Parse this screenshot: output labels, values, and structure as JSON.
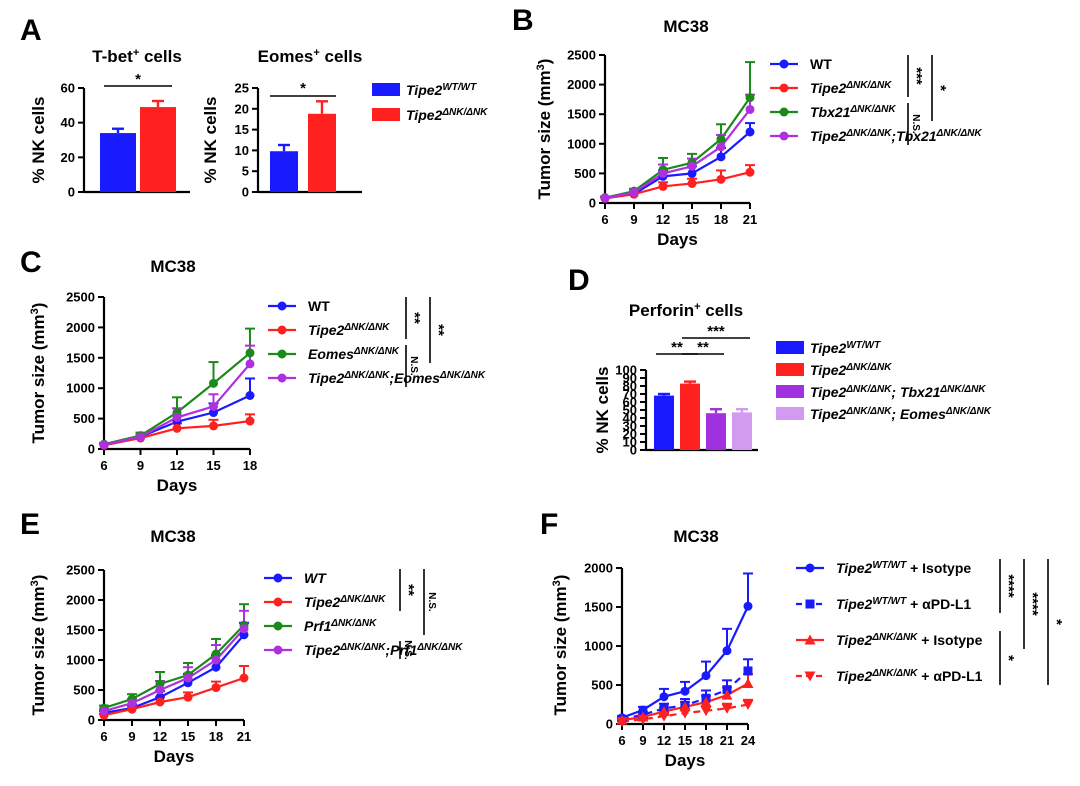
{
  "figure": {
    "panels": {
      "A": "A",
      "B": "B",
      "C": "C",
      "D": "D",
      "E": "E",
      "F": "F"
    }
  },
  "colors": {
    "wt": "#1a1aff",
    "ko": "#ff2020",
    "tbx": "#1a8a1a",
    "combo": "#b030e0",
    "light": "#d39bf0"
  },
  "chart_data": [
    {
      "id": "A1",
      "type": "bar",
      "title": "T-bet+ cells",
      "title_main": "T-bet",
      "title_sup": "+",
      "title_rest": " cells",
      "ylabel": "% NK cells",
      "ylim": [
        0,
        60
      ],
      "yticks": [
        0,
        20,
        40,
        60
      ],
      "categories": [
        "Tipe2 WT/WT",
        "Tipe2 ΔNK/ΔNK"
      ],
      "values": [
        34,
        49
      ],
      "errors": [
        2.5,
        3.5
      ],
      "colors": [
        "#1a1aff",
        "#ff2020"
      ],
      "significance": [
        {
          "from": 0,
          "to": 1,
          "label": "*"
        }
      ]
    },
    {
      "id": "A2",
      "type": "bar",
      "title": "Eomes+ cells",
      "title_main": "Eomes",
      "title_sup": "+",
      "title_rest": " cells",
      "ylabel": "% NK cells",
      "ylim": [
        0,
        25
      ],
      "yticks": [
        0,
        5,
        10,
        15,
        20,
        25
      ],
      "categories": [
        "Tipe2 WT/WT",
        "Tipe2 ΔNK/ΔNK"
      ],
      "values": [
        9.8,
        18.8
      ],
      "errors": [
        1.5,
        3
      ],
      "colors": [
        "#1a1aff",
        "#ff2020"
      ],
      "significance": [
        {
          "from": 0,
          "to": 1,
          "label": "*"
        }
      ],
      "legend": [
        {
          "base": "Tipe2",
          "sup": "WT/WT",
          "color": "#1a1aff"
        },
        {
          "base": "Tipe2",
          "sup": "ΔNK/ΔNK",
          "color": "#ff2020"
        }
      ]
    },
    {
      "id": "B",
      "type": "line",
      "title": "MC38",
      "xlabel": "Days",
      "ylabel": "Tumor size (mm3)",
      "ylabel_main": "Tumor size (mm",
      "ylabel_sup": "3",
      "ylabel_end": ")",
      "x": [
        6,
        9,
        12,
        15,
        18,
        21
      ],
      "xlim": [
        6,
        21
      ],
      "ylim": [
        0,
        2500
      ],
      "yticks": [
        0,
        500,
        1000,
        1500,
        2000,
        2500
      ],
      "series": [
        {
          "name": "WT",
          "color": "#1a1aff",
          "marker": "circle",
          "values": [
            80,
            150,
            450,
            500,
            780,
            1200
          ],
          "errors": [
            20,
            30,
            100,
            120,
            150,
            150
          ]
        },
        {
          "name": "Tipe2 ΔNK/ΔNK",
          "color": "#ff2020",
          "marker": "circle",
          "values": [
            80,
            150,
            280,
            330,
            400,
            520
          ],
          "errors": [
            20,
            30,
            70,
            80,
            150,
            120
          ]
        },
        {
          "name": "Tbx21 ΔNK/ΔNK",
          "color": "#1a8a1a",
          "marker": "circle",
          "values": [
            90,
            200,
            560,
            680,
            1080,
            1780
          ],
          "errors": [
            20,
            40,
            200,
            150,
            250,
            600
          ]
        },
        {
          "name": "Tipe2 ΔNK/ΔNK;Tbx21 ΔNK/ΔNK",
          "color": "#b030e0",
          "marker": "circle",
          "values": [
            80,
            180,
            500,
            620,
            950,
            1580
          ],
          "errors": [
            20,
            40,
            150,
            130,
            200,
            250
          ]
        }
      ],
      "legend": [
        {
          "parts": [
            {
              "t": "WT",
              "sup": false
            }
          ],
          "italic": false
        },
        {
          "parts": [
            {
              "t": "Tipe2",
              "sup": false
            },
            {
              "t": "ΔNK/ΔNK",
              "sup": true
            }
          ],
          "italic": true
        },
        {
          "parts": [
            {
              "t": "Tbx21",
              "sup": false
            },
            {
              "t": "ΔNK/ΔNK",
              "sup": true
            }
          ],
          "italic": true
        },
        {
          "parts": [
            {
              "t": "Tipe2",
              "sup": false
            },
            {
              "t": "ΔNK/ΔNK",
              "sup": true
            },
            {
              "t": ";Tbx21",
              "sup": false
            },
            {
              "t": "ΔNK/ΔNK",
              "sup": true
            }
          ],
          "italic": true
        }
      ],
      "significance": [
        {
          "rows": [
            0,
            1
          ],
          "label": "***",
          "level": 0
        },
        {
          "rows": [
            0,
            2
          ],
          "label": "*",
          "level": 1
        },
        {
          "rows": [
            2,
            3
          ],
          "label": "N.S.",
          "level": 0
        }
      ]
    },
    {
      "id": "C",
      "type": "line",
      "title": "MC38",
      "xlabel": "Days",
      "ylabel": "Tumor size (mm3)",
      "ylabel_main": "Tumor size (mm",
      "ylabel_sup": "3",
      "ylabel_end": ")",
      "x": [
        6,
        9,
        12,
        15,
        18
      ],
      "xlim": [
        6,
        18
      ],
      "ylim": [
        0,
        2500
      ],
      "yticks": [
        0,
        500,
        1000,
        1500,
        2000,
        2500
      ],
      "series": [
        {
          "name": "WT",
          "color": "#1a1aff",
          "marker": "circle",
          "values": [
            60,
            200,
            450,
            600,
            880
          ],
          "errors": [
            20,
            40,
            100,
            150,
            280
          ]
        },
        {
          "name": "Tipe2 ΔNK/ΔNK",
          "color": "#ff2020",
          "marker": "circle",
          "values": [
            60,
            180,
            340,
            380,
            460
          ],
          "errors": [
            20,
            40,
            80,
            100,
            110
          ]
        },
        {
          "name": "Eomes ΔNK/ΔNK",
          "color": "#1a8a1a",
          "marker": "circle",
          "values": [
            80,
            220,
            600,
            1080,
            1580
          ],
          "errors": [
            20,
            50,
            250,
            350,
            400
          ]
        },
        {
          "name": "Tipe2 ΔNK/ΔNK;Eomes ΔNK/ΔNK",
          "color": "#b030e0",
          "marker": "circle",
          "values": [
            70,
            200,
            520,
            700,
            1400
          ],
          "errors": [
            20,
            50,
            150,
            200,
            300
          ]
        }
      ],
      "legend": [
        {
          "parts": [
            {
              "t": "WT",
              "sup": false
            }
          ],
          "italic": false
        },
        {
          "parts": [
            {
              "t": "Tipe2",
              "sup": false
            },
            {
              "t": "ΔNK/ΔNK",
              "sup": true
            }
          ],
          "italic": true
        },
        {
          "parts": [
            {
              "t": "Eomes",
              "sup": false
            },
            {
              "t": "ΔNK/ΔNK",
              "sup": true
            }
          ],
          "italic": true
        },
        {
          "parts": [
            {
              "t": "Tipe2",
              "sup": false
            },
            {
              "t": "ΔNK/ΔNK",
              "sup": true
            },
            {
              "t": ";Eomes",
              "sup": false
            },
            {
              "t": "ΔNK/ΔNK",
              "sup": true
            }
          ],
          "italic": true
        }
      ],
      "significance": [
        {
          "rows": [
            0,
            1
          ],
          "label": "**",
          "level": 0
        },
        {
          "rows": [
            0,
            2
          ],
          "label": "**",
          "level": 1
        },
        {
          "rows": [
            2,
            3
          ],
          "label": "N.S.",
          "level": 0
        }
      ]
    },
    {
      "id": "D",
      "type": "bar",
      "title": "Perforin+ cells",
      "title_main": "Perforin",
      "title_sup": "+",
      "title_rest": " cells",
      "ylabel": "% NK cells",
      "ylim": [
        0,
        100
      ],
      "yticks": [
        0,
        10,
        20,
        30,
        40,
        50,
        60,
        70,
        80,
        90,
        100
      ],
      "categories": [
        "Tipe2 WT/WT",
        "Tipe2 ΔNK/ΔNK",
        "Tipe2 ΔNK/ΔNK; Tbx21 ΔNK/ΔNK",
        "Tipe2 ΔNK/ΔNK; Eomes ΔNK/ΔNK"
      ],
      "values": [
        68,
        83,
        46,
        47
      ],
      "errors": [
        2,
        2.5,
        5,
        4
      ],
      "colors": [
        "#1a1aff",
        "#ff2020",
        "#a030e0",
        "#d39bf0"
      ],
      "significance": [
        {
          "from": 0,
          "to": 1,
          "label": "**",
          "level": 0
        },
        {
          "from": 1,
          "to": 2,
          "label": "**",
          "level": 0
        },
        {
          "from": 1,
          "to": 3,
          "label": "***",
          "level": 1
        }
      ],
      "legend": [
        {
          "parts": [
            {
              "t": "Tipe2",
              "sup": false
            },
            {
              "t": "WT/WT",
              "sup": true
            }
          ],
          "color": "#1a1aff"
        },
        {
          "parts": [
            {
              "t": "Tipe2",
              "sup": false
            },
            {
              "t": "ΔNK/ΔNK",
              "sup": true
            }
          ],
          "color": "#ff2020"
        },
        {
          "parts": [
            {
              "t": "Tipe2",
              "sup": false
            },
            {
              "t": "ΔNK/ΔNK",
              "sup": true
            },
            {
              "t": "; Tbx21",
              "sup": false
            },
            {
              "t": "ΔNK/ΔNK",
              "sup": true
            }
          ],
          "color": "#a030e0"
        },
        {
          "parts": [
            {
              "t": "Tipe2",
              "sup": false
            },
            {
              "t": "ΔNK/ΔNK",
              "sup": true
            },
            {
              "t": "; Eomes",
              "sup": false
            },
            {
              "t": "ΔNK/ΔNK",
              "sup": true
            }
          ],
          "color": "#d39bf0"
        }
      ]
    },
    {
      "id": "E",
      "type": "line",
      "title": "MC38",
      "xlabel": "Days",
      "ylabel": "Tumor size (mm3)",
      "ylabel_main": "Tumor size (mm",
      "ylabel_sup": "3",
      "ylabel_end": ")",
      "x": [
        6,
        9,
        12,
        15,
        18,
        21
      ],
      "xlim": [
        6,
        21
      ],
      "ylim": [
        0,
        2500
      ],
      "yticks": [
        0,
        500,
        1000,
        1500,
        2000,
        2500
      ],
      "series": [
        {
          "name": "WT",
          "color": "#1a1aff",
          "marker": "circle",
          "values": [
            120,
            200,
            380,
            620,
            880,
            1420
          ],
          "errors": [
            30,
            60,
            100,
            150,
            200,
            200
          ]
        },
        {
          "name": "Tipe2 ΔNK/ΔNK",
          "color": "#ff2020",
          "marker": "circle",
          "values": [
            80,
            180,
            300,
            380,
            540,
            700
          ],
          "errors": [
            20,
            50,
            80,
            80,
            100,
            200
          ]
        },
        {
          "name": "Prf1 ΔNK/ΔNK",
          "color": "#1a8a1a",
          "marker": "circle",
          "values": [
            200,
            350,
            600,
            750,
            1100,
            1580
          ],
          "errors": [
            40,
            80,
            200,
            200,
            250,
            350
          ]
        },
        {
          "name": "Tipe2 ΔNK/ΔNK;Prf1 ΔNK/ΔNK",
          "color": "#b030e0",
          "marker": "circle",
          "values": [
            150,
            280,
            500,
            700,
            1000,
            1520
          ],
          "errors": [
            30,
            70,
            150,
            180,
            250,
            300
          ]
        }
      ],
      "legend": [
        {
          "parts": [
            {
              "t": "WT",
              "sup": false
            }
          ],
          "italic": true
        },
        {
          "parts": [
            {
              "t": "Tipe2",
              "sup": false
            },
            {
              "t": "ΔNK/ΔNK",
              "sup": true
            }
          ],
          "italic": true
        },
        {
          "parts": [
            {
              "t": "Prf1",
              "sup": false
            },
            {
              "t": "ΔNK/ΔNK",
              "sup": true
            }
          ],
          "italic": true
        },
        {
          "parts": [
            {
              "t": "Tipe2",
              "sup": false
            },
            {
              "t": "ΔNK/ΔNK",
              "sup": true
            },
            {
              "t": ";Prf1",
              "sup": false
            },
            {
              "t": "ΔNK/ΔNK",
              "sup": true
            }
          ],
          "italic": true
        }
      ],
      "significance": [
        {
          "rows": [
            0,
            1
          ],
          "label": "**",
          "level": 0
        },
        {
          "rows": [
            0,
            2
          ],
          "label": "N.S.",
          "level": 1
        },
        {
          "rows": [
            3,
            3
          ],
          "label": "N.S.",
          "level": 0
        }
      ]
    },
    {
      "id": "F",
      "type": "line",
      "title": "MC38",
      "xlabel": "Days",
      "ylabel": "Tumor size (mm3)",
      "ylabel_main": "Tumor size (mm",
      "ylabel_sup": "3",
      "ylabel_end": ")",
      "x": [
        6,
        9,
        12,
        15,
        18,
        21,
        24
      ],
      "xlim": [
        6,
        24
      ],
      "ylim": [
        0,
        2000
      ],
      "yticks": [
        0,
        500,
        1000,
        1500,
        2000
      ],
      "series": [
        {
          "name": "Tipe2 WT/WT + Isotype",
          "color": "#1a1aff",
          "marker": "circle",
          "dash": false,
          "values": [
            80,
            180,
            350,
            420,
            620,
            940,
            1510
          ],
          "errors": [
            20,
            40,
            100,
            120,
            180,
            280,
            420
          ]
        },
        {
          "name": "Tipe2 WT/WT + αPD-L1",
          "color": "#1a1aff",
          "marker": "square",
          "dash": true,
          "values": [
            60,
            120,
            200,
            240,
            330,
            440,
            680
          ],
          "errors": [
            20,
            30,
            60,
            80,
            100,
            120,
            150
          ]
        },
        {
          "name": "Tipe2 ΔNK/ΔNK + Isotype",
          "color": "#ff2020",
          "marker": "triangle",
          "dash": false,
          "values": [
            50,
            90,
            160,
            220,
            280,
            370,
            520
          ],
          "errors": [
            15,
            30,
            50,
            60,
            80,
            100,
            120
          ]
        },
        {
          "name": "Tipe2 ΔNK/ΔNK + αPD-L1",
          "color": "#ff2020",
          "marker": "triangle-down",
          "dash": true,
          "values": [
            30,
            60,
            100,
            140,
            170,
            200,
            250
          ],
          "errors": [
            10,
            20,
            30,
            40,
            50,
            60,
            60
          ]
        }
      ],
      "legend": [
        {
          "parts": [
            {
              "t": "Tipe2",
              "sup": false
            },
            {
              "t": "WT/WT",
              "sup": true
            }
          ],
          "suffix": " + Isotype"
        },
        {
          "parts": [
            {
              "t": "Tipe2",
              "sup": false
            },
            {
              "t": "WT/WT",
              "sup": true
            }
          ],
          "suffix": " + αPD-L1"
        },
        {
          "parts": [
            {
              "t": "Tipe2",
              "sup": false
            },
            {
              "t": "ΔNK/ΔNK",
              "sup": true
            }
          ],
          "suffix": " + Isotype"
        },
        {
          "parts": [
            {
              "t": "Tipe2",
              "sup": false
            },
            {
              "t": "ΔNK/ΔNK",
              "sup": true
            }
          ],
          "suffix": " + αPD-L1"
        }
      ],
      "significance": [
        {
          "rows": [
            0,
            1
          ],
          "label": "****",
          "level": 0
        },
        {
          "rows": [
            0,
            2
          ],
          "label": "****",
          "level": 1
        },
        {
          "rows": [
            2,
            3
          ],
          "label": "*",
          "level": 0
        },
        {
          "rows": [
            0,
            3
          ],
          "label": "*",
          "level": 2
        }
      ]
    }
  ]
}
